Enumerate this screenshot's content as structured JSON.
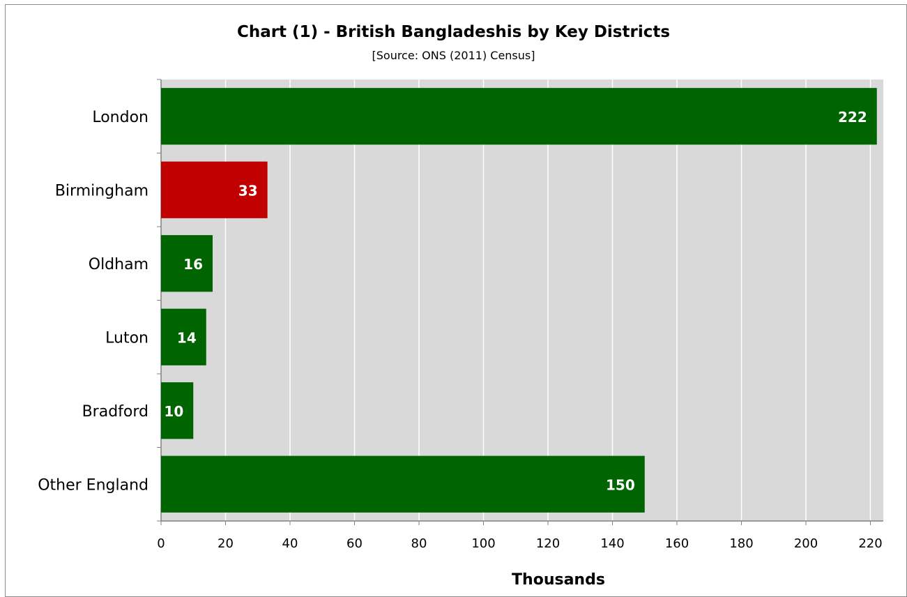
{
  "chart_data": {
    "type": "bar",
    "orientation": "horizontal",
    "title": "Chart (1) - British Bangladeshis by Key Districts",
    "subtitle": "[Source: ONS (2011) Census]",
    "categories": [
      "London",
      "Birmingham",
      "Oldham",
      "Luton",
      "Bradford",
      "Other England"
    ],
    "values": [
      222,
      33,
      16,
      14,
      10,
      150
    ],
    "data_labels": [
      "222",
      "33",
      "16",
      "14",
      "10",
      "150"
    ],
    "bar_colors": [
      "#006400",
      "#c00000",
      "#006400",
      "#006400",
      "#006400",
      "#006400"
    ],
    "xlabel": "Thousands",
    "ylabel": "",
    "xlim": [
      0,
      224
    ],
    "x_ticks": [
      0,
      20,
      40,
      60,
      80,
      100,
      120,
      140,
      160,
      180,
      200,
      220
    ],
    "grid": true,
    "legend": "none",
    "colors": {
      "plot_background": "#d9d9d9",
      "gridline": "#ffffff",
      "highlight": "#c00000",
      "default_bar": "#006400"
    }
  }
}
